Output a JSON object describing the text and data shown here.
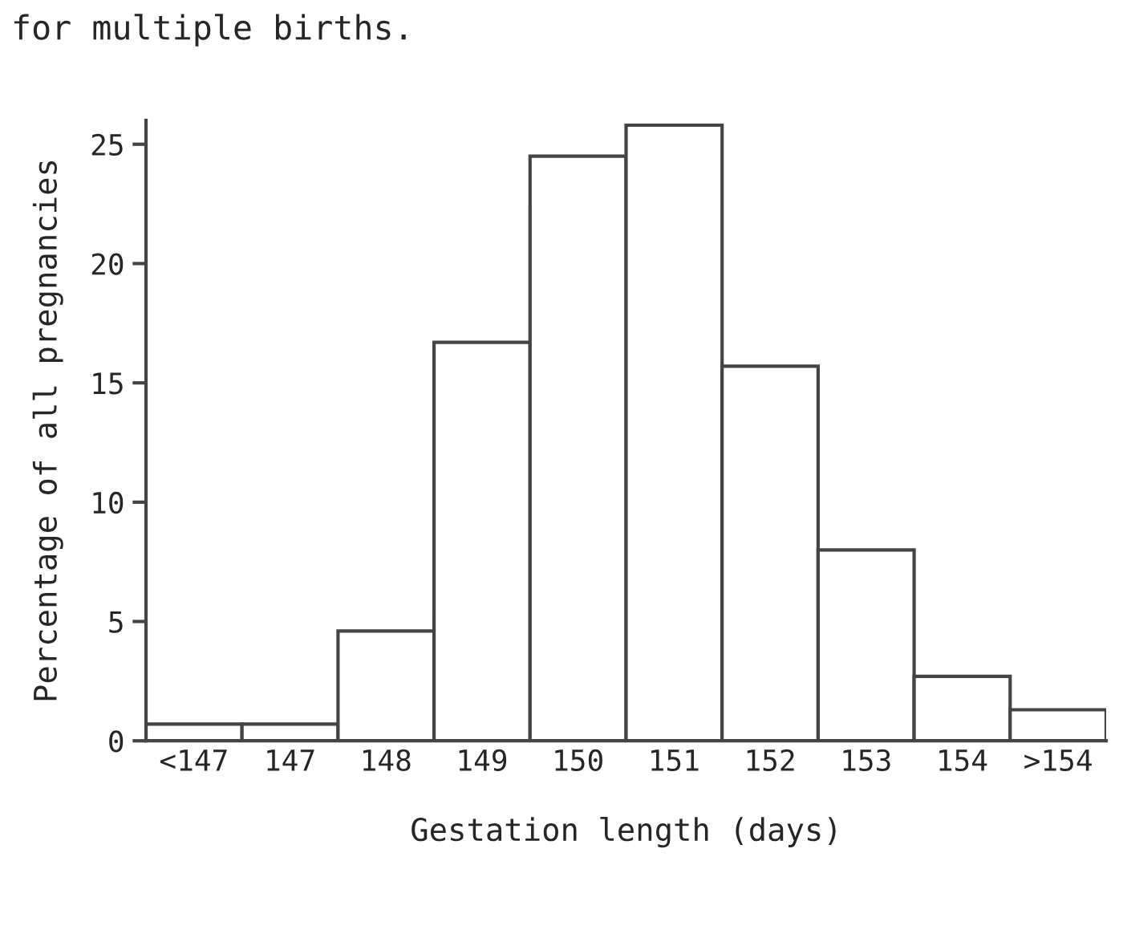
{
  "chart_data": {
    "type": "bar",
    "xlabel": "Gestation length (days)",
    "ylabel": "Percentage of all pregnancies",
    "annotations": [
      "for multiple births."
    ],
    "categories": [
      "<147",
      "147",
      "148",
      "149",
      "150",
      "151",
      "152",
      "153",
      "154",
      ">154"
    ],
    "values": [
      0.7,
      0.7,
      4.6,
      16.7,
      24.5,
      25.8,
      15.7,
      8.0,
      2.7,
      1.3
    ],
    "color": "#ffffff",
    "ylim": [
      0,
      26
    ],
    "yticks": [
      0,
      5,
      10,
      15,
      20,
      25
    ],
    "grid": false,
    "legend": false
  }
}
